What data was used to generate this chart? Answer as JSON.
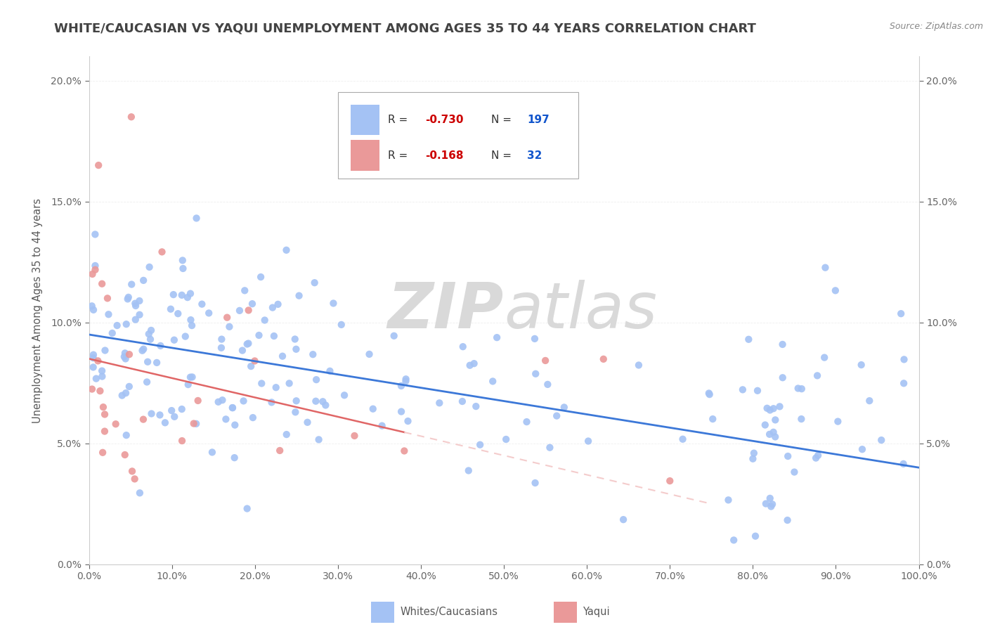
{
  "title": "WHITE/CAUCASIAN VS YAQUI UNEMPLOYMENT AMONG AGES 35 TO 44 YEARS CORRELATION CHART",
  "source": "Source: ZipAtlas.com",
  "ylabel": "Unemployment Among Ages 35 to 44 years",
  "xlim": [
    0.0,
    1.0
  ],
  "ylim": [
    0.0,
    0.21
  ],
  "xticks": [
    0.0,
    0.1,
    0.2,
    0.3,
    0.4,
    0.5,
    0.6,
    0.7,
    0.8,
    0.9,
    1.0
  ],
  "xticklabels": [
    "0.0%",
    "10.0%",
    "20.0%",
    "30.0%",
    "40.0%",
    "50.0%",
    "60.0%",
    "70.0%",
    "80.0%",
    "90.0%",
    "100.0%"
  ],
  "yticks": [
    0.0,
    0.05,
    0.1,
    0.15,
    0.2
  ],
  "yticklabels": [
    "0.0%",
    "5.0%",
    "10.0%",
    "15.0%",
    "20.0%"
  ],
  "white_R": -0.73,
  "white_N": 197,
  "yaqui_R": -0.168,
  "yaqui_N": 32,
  "white_color": "#a4c2f4",
  "yaqui_color": "#ea9999",
  "white_line_color": "#3c78d8",
  "yaqui_line_color": "#e06666",
  "yaqui_line_color_light": "#f4cccc",
  "watermark_zip": "ZIP",
  "watermark_atlas": "atlas",
  "watermark_color": "#d9d9d9",
  "background_color": "#ffffff",
  "title_color": "#434343",
  "title_fontsize": 13,
  "legend_R_color": "#cc0000",
  "legend_N_color": "#1155cc",
  "grid_color": "#eeeeee",
  "tick_color": "#666666"
}
